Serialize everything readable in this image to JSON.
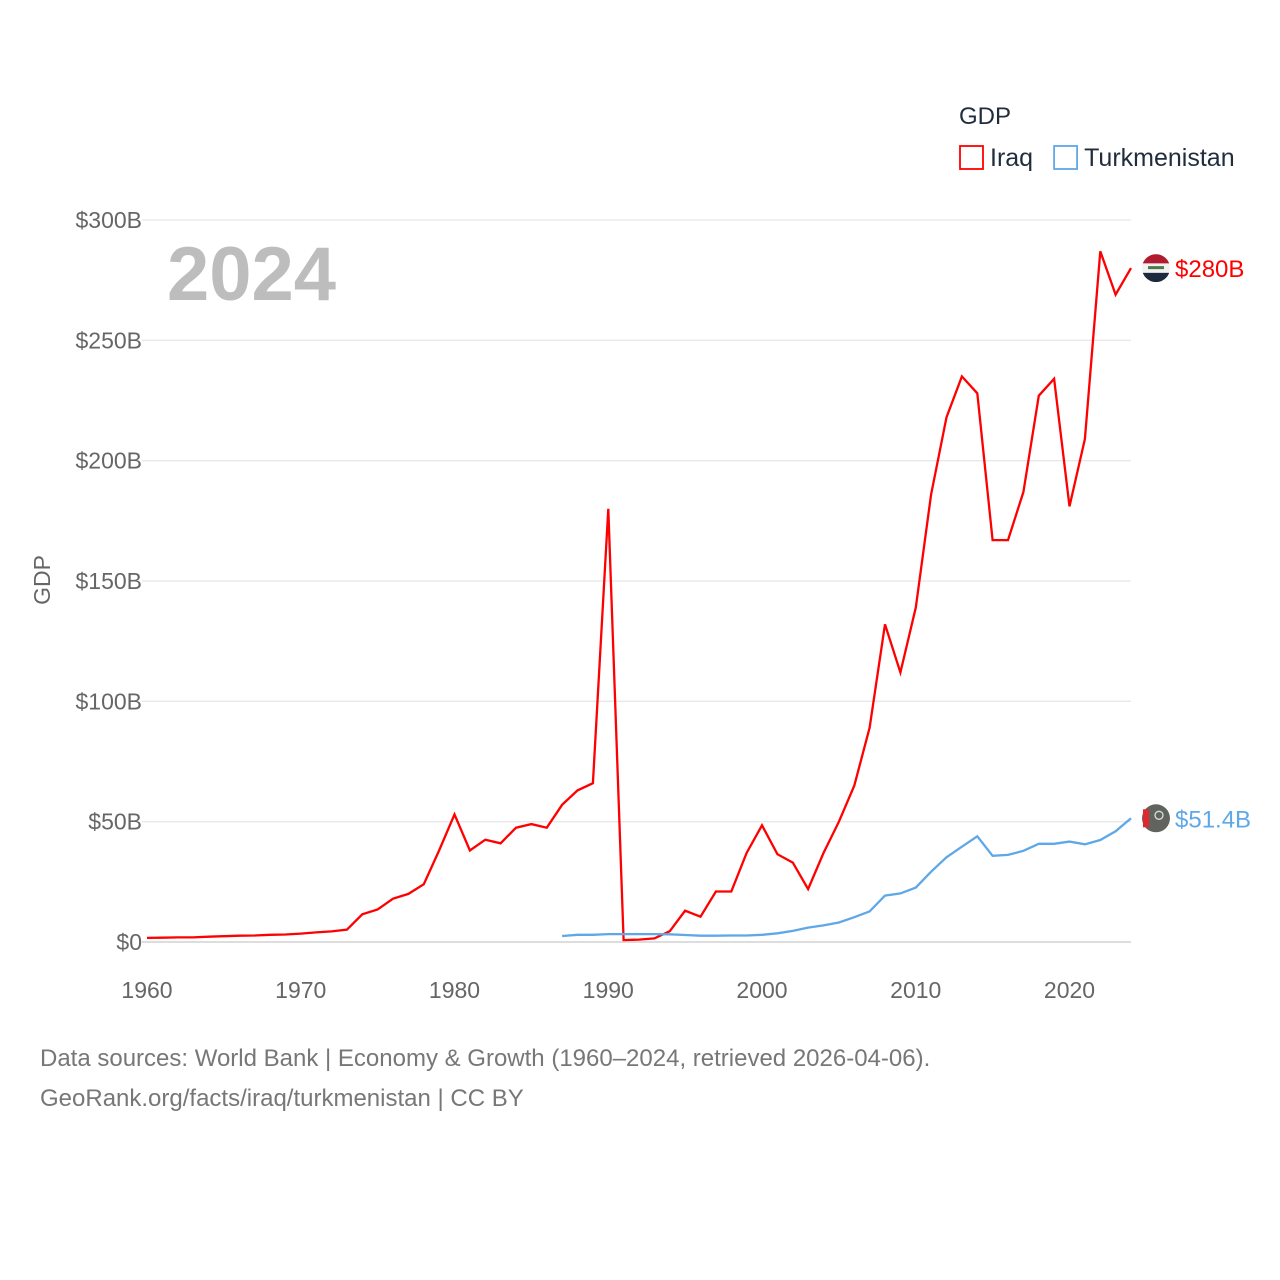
{
  "chart_data": {
    "type": "line",
    "title": "GDP",
    "ylabel": "GDP",
    "xlabel": "",
    "year_overlay": "2024",
    "ylim": [
      0,
      300
    ],
    "xlim": [
      1960,
      2024
    ],
    "yticks": [
      0,
      50,
      100,
      150,
      200,
      250,
      300
    ],
    "ytick_labels": [
      "$0",
      "$50B",
      "$100B",
      "$150B",
      "$200B",
      "$250B",
      "$300B"
    ],
    "xticks": [
      1960,
      1970,
      1980,
      1990,
      2000,
      2010,
      2020
    ],
    "xtick_labels": [
      "1960",
      "1970",
      "1980",
      "1990",
      "2000",
      "2010",
      "2020"
    ],
    "grid": true,
    "legend_position": "top-right",
    "series": [
      {
        "name": "Iraq",
        "color": "#ff0000",
        "start_year": 1960,
        "end_label": "$280B",
        "flag_icon": "iraq-flag",
        "values": [
          1.7,
          1.8,
          1.9,
          1.9,
          2.2,
          2.4,
          2.6,
          2.7,
          3.0,
          3.1,
          3.5,
          4.0,
          4.4,
          5.1,
          11.5,
          13.5,
          18,
          20,
          24,
          38,
          53,
          38,
          42.5,
          41,
          47.5,
          49,
          47.5,
          57,
          63,
          66,
          180,
          0.8,
          1.0,
          1.5,
          4.5,
          13,
          10.5,
          21,
          21,
          37,
          48.5,
          36.5,
          33,
          22,
          37,
          50,
          65,
          89,
          132,
          112,
          139,
          186,
          218,
          235,
          228,
          167,
          167,
          187,
          227,
          234,
          181,
          209,
          287,
          269,
          280
        ]
      },
      {
        "name": "Turkmenistan",
        "color": "#5fa8e8",
        "start_year": 1987,
        "end_label": "$51.4B",
        "flag_icon": "turkmenistan-flag",
        "values": [
          2.5,
          3.0,
          3.0,
          3.3,
          3.3,
          3.3,
          3.3,
          3.2,
          2.9,
          2.6,
          2.6,
          2.7,
          2.7,
          3.0,
          3.6,
          4.6,
          6.0,
          6.9,
          8.1,
          10.3,
          12.7,
          19.3,
          20.2,
          22.6,
          29.2,
          35.2,
          39.6,
          43.9,
          35.8,
          36.2,
          37.9,
          40.8,
          40.8,
          41.7,
          40.6,
          42.4,
          46.0,
          51.4
        ]
      }
    ]
  },
  "footer": {
    "line1": "Data sources: World Bank | Economy & Growth (1960–2024, retrieved 2026-04-06).",
    "line2": "GeoRank.org/facts/iraq/turkmenistan | CC BY"
  }
}
